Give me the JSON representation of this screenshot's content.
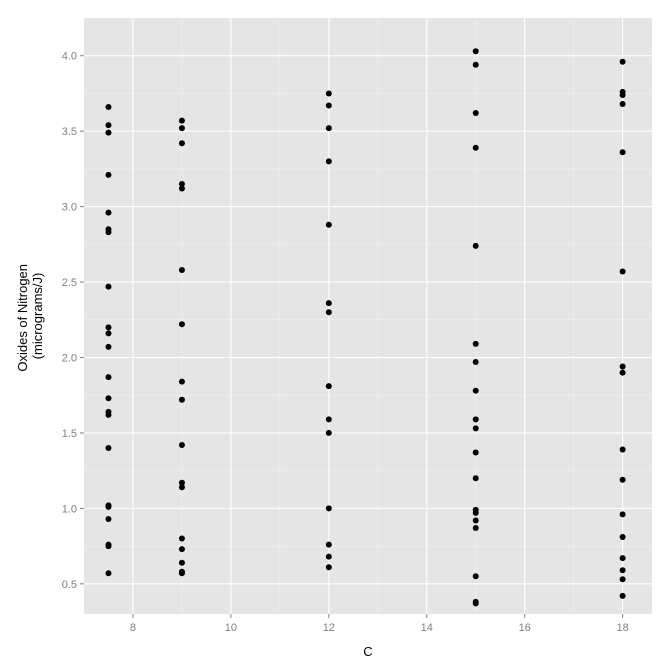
{
  "chart_data": {
    "type": "scatter",
    "title": "",
    "xlabel": "C",
    "ylabel_lines": [
      "Oxides of Nitrogen",
      "(micrograms/J)"
    ],
    "xlim": [
      7.0,
      18.6
    ],
    "ylim": [
      0.3,
      4.25
    ],
    "x_ticks": [
      8,
      10,
      12,
      14,
      16,
      18
    ],
    "x_tick_labels": [
      "8",
      "10",
      "12",
      "14",
      "16",
      "18"
    ],
    "y_ticks": [
      0.5,
      1.0,
      1.5,
      2.0,
      2.5,
      3.0,
      3.5,
      4.0
    ],
    "y_tick_labels": [
      "0.5",
      "1.0",
      "1.5",
      "2.0",
      "2.5",
      "3.0",
      "3.5",
      "4.0"
    ],
    "grid": true,
    "legend": "none",
    "colors": {
      "panel": "#e5e5e5",
      "grid_major": "#ffffff",
      "grid_minor": "#f2f2f2",
      "point": "#000000"
    },
    "series": [
      {
        "points": [
          [
            7.5,
            3.66
          ],
          [
            7.5,
            3.54
          ],
          [
            7.5,
            3.49
          ],
          [
            7.5,
            3.21
          ],
          [
            7.5,
            2.96
          ],
          [
            7.5,
            2.85
          ],
          [
            7.5,
            2.83
          ],
          [
            7.5,
            2.47
          ],
          [
            7.5,
            2.2
          ],
          [
            7.5,
            2.16
          ],
          [
            7.5,
            2.07
          ],
          [
            7.5,
            1.87
          ],
          [
            7.5,
            1.73
          ],
          [
            7.5,
            1.64
          ],
          [
            7.5,
            1.62
          ],
          [
            7.5,
            1.4
          ],
          [
            7.5,
            1.02
          ],
          [
            7.5,
            1.01
          ],
          [
            7.5,
            0.93
          ],
          [
            7.5,
            0.76
          ],
          [
            7.5,
            0.75
          ],
          [
            7.5,
            0.57
          ],
          [
            9,
            3.57
          ],
          [
            9,
            3.52
          ],
          [
            9,
            3.42
          ],
          [
            9,
            3.15
          ],
          [
            9,
            3.12
          ],
          [
            9,
            2.58
          ],
          [
            9,
            2.22
          ],
          [
            9,
            1.84
          ],
          [
            9,
            1.72
          ],
          [
            9,
            1.42
          ],
          [
            9,
            1.17
          ],
          [
            9,
            1.14
          ],
          [
            9,
            0.8
          ],
          [
            9,
            0.73
          ],
          [
            9,
            0.64
          ],
          [
            9,
            0.58
          ],
          [
            9,
            0.57
          ],
          [
            12,
            3.75
          ],
          [
            12,
            3.67
          ],
          [
            12,
            3.52
          ],
          [
            12,
            3.3
          ],
          [
            12,
            2.88
          ],
          [
            12,
            2.36
          ],
          [
            12,
            2.3
          ],
          [
            12,
            1.81
          ],
          [
            12,
            1.59
          ],
          [
            12,
            1.5
          ],
          [
            12,
            1.0
          ],
          [
            12,
            0.76
          ],
          [
            12,
            0.68
          ],
          [
            12,
            0.61
          ],
          [
            15,
            4.03
          ],
          [
            15,
            3.94
          ],
          [
            15,
            3.62
          ],
          [
            15,
            3.39
          ],
          [
            15,
            2.74
          ],
          [
            15,
            2.09
          ],
          [
            15,
            1.97
          ],
          [
            15,
            1.78
          ],
          [
            15,
            1.59
          ],
          [
            15,
            1.53
          ],
          [
            15,
            1.37
          ],
          [
            15,
            1.2
          ],
          [
            15,
            0.99
          ],
          [
            15,
            0.97
          ],
          [
            15,
            0.92
          ],
          [
            15,
            0.87
          ],
          [
            15,
            0.55
          ],
          [
            15,
            0.38
          ],
          [
            15,
            0.37
          ],
          [
            18,
            3.96
          ],
          [
            18,
            3.76
          ],
          [
            18,
            3.74
          ],
          [
            18,
            3.68
          ],
          [
            18,
            3.36
          ],
          [
            18,
            2.57
          ],
          [
            18,
            1.94
          ],
          [
            18,
            1.9
          ],
          [
            18,
            1.39
          ],
          [
            18,
            1.19
          ],
          [
            18,
            0.96
          ],
          [
            18,
            0.81
          ],
          [
            18,
            0.67
          ],
          [
            18,
            0.59
          ],
          [
            18,
            0.53
          ],
          [
            18,
            0.42
          ]
        ]
      }
    ]
  }
}
